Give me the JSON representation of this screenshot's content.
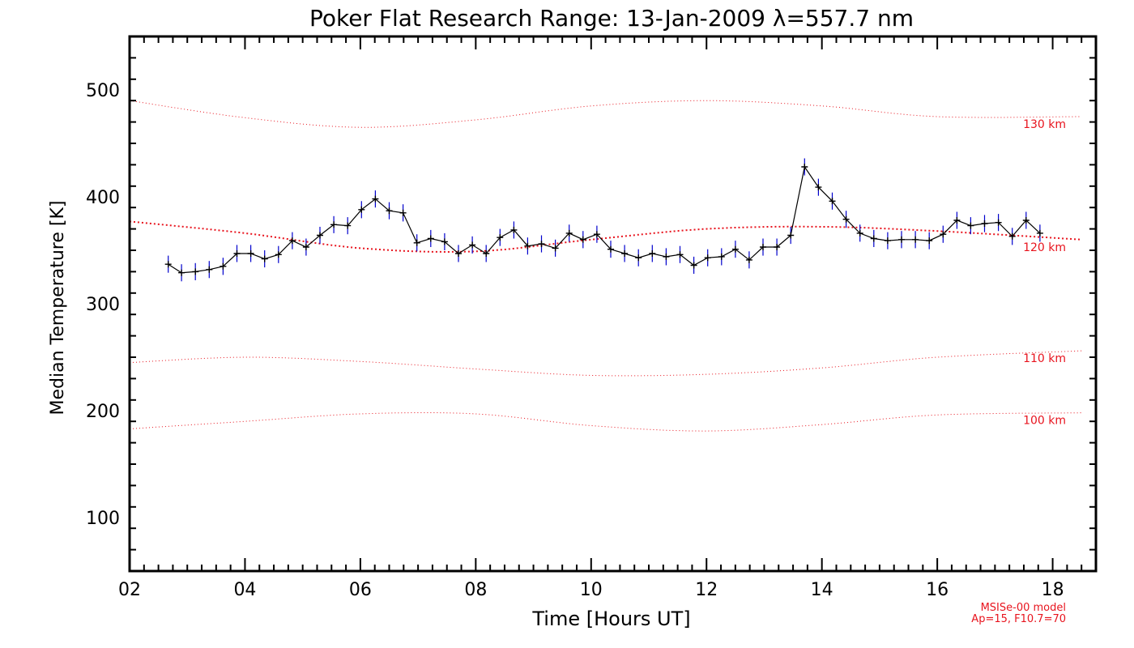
{
  "chart_data": {
    "type": "line",
    "title": "Poker Flat Research Range: 13-Jan-2009 λ=557.7 nm",
    "xlabel": "Time [Hours UT]",
    "ylabel": "Median Temperature [K]",
    "xlim": [
      2,
      18.75
    ],
    "ylim": [
      50,
      550
    ],
    "x_ticks": [
      2,
      4,
      6,
      8,
      10,
      12,
      14,
      16,
      18
    ],
    "x_tick_labels": [
      "02",
      "04",
      "06",
      "08",
      "10",
      "12",
      "14",
      "16",
      "18"
    ],
    "y_ticks": [
      100,
      200,
      300,
      400,
      500
    ],
    "y_tick_labels": [
      "100",
      "200",
      "300",
      "400",
      "500"
    ],
    "colors": {
      "data": "#000000",
      "error": "#0000cc",
      "model": "#e8141e",
      "axis": "#000000"
    },
    "series": [
      {
        "name": "Median temperature",
        "x": [
          2.67,
          2.9,
          3.14,
          3.38,
          3.62,
          3.86,
          4.1,
          4.34,
          4.58,
          4.82,
          5.06,
          5.3,
          5.54,
          5.78,
          6.02,
          6.26,
          6.5,
          6.74,
          6.98,
          7.22,
          7.46,
          7.7,
          7.94,
          8.18,
          8.42,
          8.66,
          8.9,
          9.14,
          9.38,
          9.62,
          9.86,
          10.1,
          10.34,
          10.58,
          10.82,
          11.06,
          11.3,
          11.54,
          11.78,
          12.02,
          12.26,
          12.5,
          12.74,
          12.98,
          13.22,
          13.46,
          13.7,
          13.94,
          14.18,
          14.42,
          14.66,
          14.9,
          15.14,
          15.38,
          15.62,
          15.86,
          16.1,
          16.34,
          16.58,
          16.82,
          17.06,
          17.3,
          17.54,
          17.78
        ],
        "y": [
          337,
          329,
          330,
          332,
          335,
          347,
          347,
          342,
          346,
          359,
          353,
          364,
          374,
          373,
          388,
          398,
          387,
          385,
          357,
          361,
          358,
          347,
          355,
          347,
          362,
          369,
          354,
          356,
          352,
          366,
          360,
          365,
          351,
          347,
          343,
          347,
          344,
          346,
          336,
          343,
          344,
          351,
          341,
          353,
          353,
          364,
          428,
          409,
          396,
          379,
          366,
          361,
          359,
          360,
          360,
          359,
          365,
          378,
          373,
          375,
          376,
          363,
          378,
          366
        ],
        "error": 8
      }
    ],
    "model_curves": [
      {
        "label": "130 km",
        "x": [
          2,
          4,
          6,
          8,
          10,
          12,
          14,
          16,
          18.5
        ],
        "y": [
          490,
          474,
          465,
          472,
          485,
          490,
          485,
          475,
          475
        ]
      },
      {
        "label": "120 km",
        "x": [
          2,
          4,
          6,
          8,
          10,
          12,
          14,
          16,
          18.5
        ],
        "y": [
          377,
          366,
          352,
          349,
          360,
          370,
          372,
          368,
          360
        ]
      },
      {
        "label": "110 km",
        "x": [
          2,
          4,
          6,
          8,
          10,
          12,
          14,
          16,
          18.5
        ],
        "y": [
          245,
          250,
          246,
          239,
          233,
          234,
          240,
          250,
          256
        ]
      },
      {
        "label": "100 km",
        "x": [
          2,
          4,
          6,
          8,
          10,
          12,
          14,
          16,
          18.5
        ],
        "y": [
          183,
          190,
          197,
          197,
          186,
          181,
          187,
          196,
          198
        ]
      }
    ],
    "model_note": {
      "line1": "MSISe-00 model",
      "line2": "Ap=15, F10.7=70"
    }
  }
}
